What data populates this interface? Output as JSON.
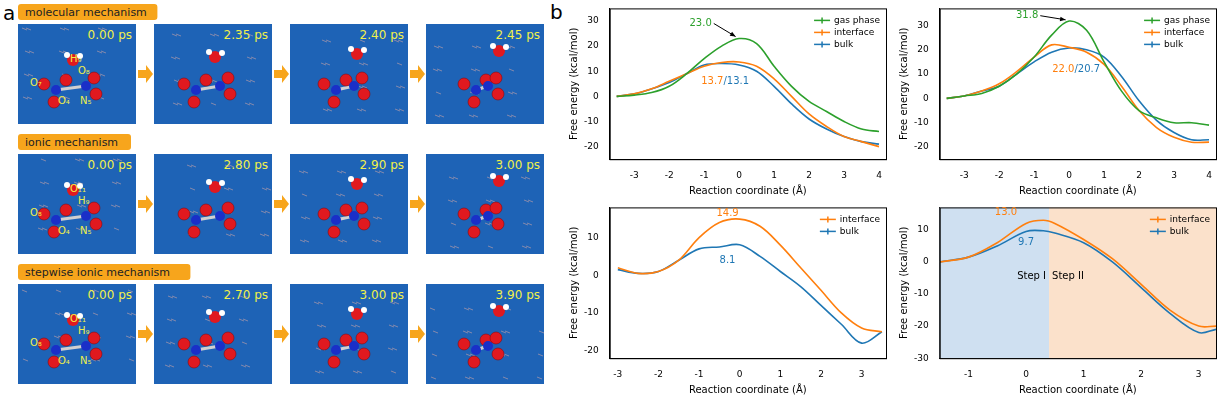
{
  "panel_a": {
    "label": "a",
    "rows": [
      {
        "title": "molecular mechanism",
        "times": [
          "0.00 ps",
          "2.35 ps",
          "2.40 ps",
          "2.45 ps"
        ],
        "atoms": [
          "H₉",
          "O₈",
          "O₇",
          "O₄",
          "N₅"
        ]
      },
      {
        "title": "ionic mechanism",
        "times": [
          "0.00 ps",
          "2.80 ps",
          "2.90 ps",
          "3.00 ps"
        ],
        "atoms": [
          "O₁₁",
          "H₉",
          "O₈",
          "O₄",
          "N₅"
        ]
      },
      {
        "title": "stepwise ionic mechanism",
        "times": [
          "0.00 ps",
          "2.70 ps",
          "3.00 ps",
          "3.90 ps"
        ],
        "atoms": [
          "O₁₁",
          "H₉",
          "O₈",
          "O₄",
          "N₅"
        ]
      }
    ]
  },
  "panel_b_label": "b",
  "chart_data": [
    {
      "type": "line",
      "x_label": "Reaction coordinate (Å)",
      "y_label": "Free energy (kcal/mol)",
      "x": [
        -3.5,
        -3,
        -2.5,
        -2,
        -1.5,
        -1,
        -0.5,
        0,
        0.5,
        1,
        1.5,
        2,
        2.5,
        3,
        3.5,
        4
      ],
      "series": [
        {
          "name": "gas phase",
          "color": "#2ca02c",
          "values": [
            0,
            0.5,
            1.5,
            4,
            9,
            15,
            20,
            23,
            21,
            12,
            4,
            -2,
            -6,
            -10,
            -13,
            -14
          ]
        },
        {
          "name": "interface",
          "color": "#ff7f0e",
          "values": [
            0,
            1,
            3,
            6,
            9,
            12,
            13.5,
            13.7,
            12,
            7,
            0,
            -7,
            -12,
            -16,
            -18,
            -20
          ]
        },
        {
          "name": "bulk",
          "color": "#1f77b4",
          "values": [
            0,
            1,
            3,
            5.5,
            9,
            12.5,
            13.1,
            12.5,
            10,
            4,
            -3,
            -9,
            -13,
            -16,
            -18,
            -19
          ]
        }
      ],
      "xlim": [
        -3.7,
        4.2
      ],
      "xticks": [
        -3,
        -2,
        -1,
        0,
        1,
        2,
        3,
        4
      ],
      "ylim": [
        -25,
        35
      ],
      "yticks": [
        -20,
        -10,
        0,
        10,
        20,
        30
      ],
      "grid": false,
      "legend": "upper right",
      "annotations": [
        {
          "parts": [
            {
              "text": "23.0",
              "color": "#2ca02c"
            }
          ],
          "x": -1.1,
          "y": 29,
          "arrow_to": [
            -0.1,
            23.8
          ]
        },
        {
          "parts": [
            {
              "text": "13.7",
              "color": "#ff7f0e"
            },
            {
              "text": "/13.1",
              "color": "#1f77b4"
            }
          ],
          "x": -0.4,
          "y": 6
        }
      ]
    },
    {
      "type": "line",
      "x_label": "Reaction coordinate (Å)",
      "y_label": "Free energy (kcal/mol)",
      "x": [
        -3.5,
        -3,
        -2.5,
        -2,
        -1.5,
        -1,
        -0.5,
        0,
        0.5,
        1,
        1.5,
        2,
        2.5,
        3,
        3.5,
        4
      ],
      "series": [
        {
          "name": "gas phase",
          "color": "#2ca02c",
          "values": [
            0,
            1,
            2,
            5,
            10,
            17,
            26,
            31.8,
            28,
            15,
            3,
            -5,
            -8,
            -10,
            -10,
            -11
          ]
        },
        {
          "name": "interface",
          "color": "#ff7f0e",
          "values": [
            0,
            1,
            3,
            6,
            11,
            17,
            22,
            21,
            19,
            14,
            5,
            -5,
            -12,
            -16,
            -18,
            -18
          ]
        },
        {
          "name": "bulk",
          "color": "#1f77b4",
          "values": [
            0,
            1,
            3,
            5,
            10,
            15,
            19,
            20.7,
            20,
            17,
            9,
            -1,
            -9,
            -14,
            -17,
            -17
          ]
        }
      ],
      "xlim": [
        -3.7,
        4.2
      ],
      "xticks": [
        -3,
        -2,
        -1,
        0,
        1,
        2,
        3,
        4
      ],
      "ylim": [
        -25,
        37
      ],
      "yticks": [
        -20,
        -10,
        0,
        10,
        20,
        30
      ],
      "grid": false,
      "legend": "upper right",
      "annotations": [
        {
          "parts": [
            {
              "text": "31.8",
              "color": "#2ca02c"
            }
          ],
          "x": -1.2,
          "y": 34,
          "arrow_to": [
            -0.1,
            32.3
          ]
        },
        {
          "parts": [
            {
              "text": "22.0",
              "color": "#ff7f0e"
            },
            {
              "text": "/20.7",
              "color": "#1f77b4"
            }
          ],
          "x": 0.2,
          "y": 12
        }
      ]
    },
    {
      "type": "line",
      "x_label": "Reaction coordinate (Å)",
      "y_label": "Free energy (kcal/mol)",
      "x": [
        -3,
        -2.5,
        -2,
        -1.5,
        -1,
        -0.5,
        0,
        0.5,
        1,
        1.5,
        2,
        2.5,
        3,
        3.5
      ],
      "series": [
        {
          "name": "interface",
          "color": "#ff7f0e",
          "values": [
            2,
            0.5,
            1,
            4,
            10,
            14,
            14.9,
            13,
            8,
            2,
            -4,
            -10,
            -14,
            -15
          ]
        },
        {
          "name": "bulk",
          "color": "#1f77b4",
          "values": [
            1.5,
            0.5,
            1,
            4,
            7,
            7.5,
            8.1,
            5,
            1,
            -3,
            -8,
            -13,
            -18,
            -15
          ]
        }
      ],
      "xlim": [
        -3.2,
        3.6
      ],
      "xticks": [
        -3,
        -2,
        -1,
        0,
        1,
        2,
        3
      ],
      "ylim": [
        -22,
        18
      ],
      "yticks": [
        -20,
        -10,
        0,
        10
      ],
      "grid": false,
      "legend": "upper right",
      "annotations": [
        {
          "parts": [
            {
              "text": "14.9",
              "color": "#ff7f0e"
            }
          ],
          "x": -0.3,
          "y": 16.3
        },
        {
          "parts": [
            {
              "text": "8.1",
              "color": "#1f77b4"
            }
          ],
          "x": -0.3,
          "y": 4
        }
      ]
    },
    {
      "type": "line",
      "x_label": "Reaction coordinate (Å)",
      "y_label": "Free energy (kcal/mol)",
      "x": [
        -1.5,
        -1,
        -0.5,
        0,
        0.3,
        0.5,
        1,
        1.5,
        2,
        2.5,
        3,
        3.3
      ],
      "series": [
        {
          "name": "interface",
          "color": "#ff7f0e",
          "values": [
            0,
            1.5,
            6,
            12,
            13,
            12,
            7,
            1,
            -7,
            -15,
            -20,
            -20
          ]
        },
        {
          "name": "bulk",
          "color": "#1f77b4",
          "values": [
            0,
            1.5,
            5,
            9.5,
            9.7,
            9,
            6,
            0,
            -8,
            -16,
            -22,
            -21
          ]
        }
      ],
      "xlim": [
        -1.5,
        3.3
      ],
      "xticks": [
        -1,
        0,
        1,
        2,
        3
      ],
      "ylim": [
        -30,
        17
      ],
      "yticks": [
        -30,
        -20,
        -10,
        0,
        10
      ],
      "grid": false,
      "legend": "upper right",
      "regions": [
        {
          "label": "Step I",
          "from": -1.5,
          "to": 0.4,
          "color": "#cfe0f1"
        },
        {
          "label": "Step II",
          "from": 0.4,
          "to": 3.3,
          "color": "#fbe1cb"
        }
      ],
      "annotations": [
        {
          "parts": [
            {
              "text": "13.0",
              "color": "#ff7f0e"
            }
          ],
          "x": -0.35,
          "y": 15.3
        },
        {
          "parts": [
            {
              "text": "9.7",
              "color": "#1f77b4"
            }
          ],
          "x": 0.0,
          "y": 6
        }
      ]
    }
  ]
}
